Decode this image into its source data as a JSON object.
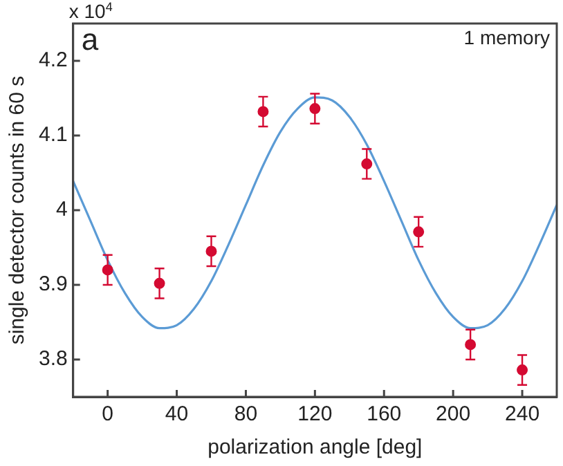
{
  "chart_data": {
    "type": "scatter",
    "xlabel": "polarization angle [deg]",
    "ylabel": "single detector counts in 60 s",
    "annotations": [
      "x 10$^{4}$",
      "a",
      "1 memory"
    ],
    "xlim": [
      -20,
      260
    ],
    "xticks": [
      0,
      40,
      80,
      120,
      160,
      200,
      240
    ],
    "ylim": [
      3.75,
      4.25
    ],
    "yticks": [
      3.8,
      3.9,
      {
        "value": 4,
        "label": "4"
      },
      4.1,
      4.2
    ],
    "marker": "circle",
    "series": [
      {
        "type": "line",
        "color": "#5b9bd5",
        "marker": "none",
        "x": [
          -20,
          -10,
          0,
          10,
          20,
          30,
          40,
          50,
          60,
          70,
          80,
          90,
          100,
          110,
          120,
          130,
          140,
          150,
          160,
          170,
          180,
          190,
          200,
          210,
          220,
          230,
          240,
          250,
          260
        ],
        "values": [
          4.039,
          3.986,
          3.933,
          3.889,
          3.857,
          3.842,
          3.846,
          3.868,
          3.905,
          3.954,
          4.007,
          4.06,
          4.105,
          4.136,
          4.151,
          4.147,
          4.125,
          4.088,
          4.039,
          3.986,
          3.933,
          3.889,
          3.857,
          3.842,
          3.846,
          3.868,
          3.905,
          3.954,
          4.007
        ]
      },
      {
        "color": "#d40a32",
        "x": [
          0,
          30,
          60,
          90,
          120,
          150,
          180,
          210,
          240
        ],
        "values": [
          3.92,
          3.902,
          3.945,
          4.132,
          4.136,
          4.062,
          3.971,
          3.82,
          3.786
        ],
        "errors": [
          0.02,
          0.02,
          0.02,
          0.02,
          0.02,
          0.02,
          0.02,
          0.02,
          0.02
        ]
      }
    ]
  }
}
